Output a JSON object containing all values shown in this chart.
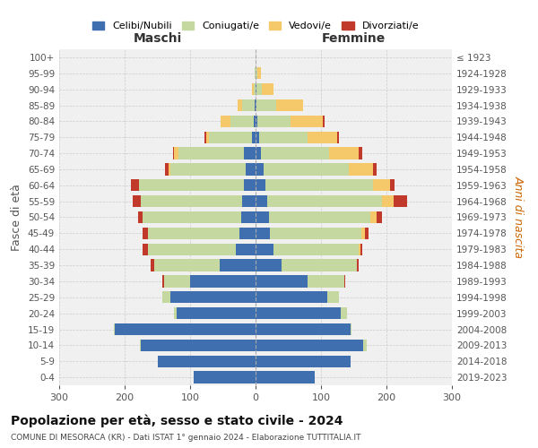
{
  "age_groups": [
    "0-4",
    "5-9",
    "10-14",
    "15-19",
    "20-24",
    "25-29",
    "30-34",
    "35-39",
    "40-44",
    "45-49",
    "50-54",
    "55-59",
    "60-64",
    "65-69",
    "70-74",
    "75-79",
    "80-84",
    "85-89",
    "90-94",
    "95-99",
    "100+"
  ],
  "birth_years": [
    "2019-2023",
    "2014-2018",
    "2009-2013",
    "2004-2008",
    "1999-2003",
    "1994-1998",
    "1989-1993",
    "1984-1988",
    "1979-1983",
    "1974-1978",
    "1969-1973",
    "1964-1968",
    "1959-1963",
    "1954-1958",
    "1949-1953",
    "1944-1948",
    "1939-1943",
    "1934-1938",
    "1929-1933",
    "1924-1928",
    "≤ 1923"
  ],
  "male": {
    "celibi": [
      95,
      150,
      175,
      215,
      120,
      130,
      100,
      55,
      30,
      25,
      22,
      20,
      18,
      15,
      18,
      6,
      3,
      2,
      0,
      0,
      0
    ],
    "coniugati": [
      0,
      0,
      2,
      2,
      5,
      12,
      40,
      100,
      135,
      140,
      150,
      155,
      160,
      115,
      100,
      65,
      35,
      18,
      3,
      1,
      0
    ],
    "vedovi": [
      0,
      0,
      0,
      0,
      0,
      0,
      0,
      0,
      0,
      0,
      0,
      0,
      0,
      3,
      6,
      5,
      15,
      8,
      3,
      1,
      0
    ],
    "divorziati": [
      0,
      0,
      0,
      0,
      0,
      0,
      2,
      5,
      7,
      8,
      8,
      12,
      12,
      5,
      2,
      2,
      0,
      0,
      0,
      0,
      0
    ]
  },
  "female": {
    "nubili": [
      90,
      145,
      165,
      145,
      130,
      110,
      80,
      40,
      28,
      22,
      20,
      18,
      15,
      12,
      8,
      5,
      3,
      2,
      1,
      0,
      0
    ],
    "coniugate": [
      0,
      0,
      5,
      2,
      10,
      18,
      55,
      115,
      130,
      140,
      155,
      175,
      165,
      130,
      105,
      75,
      50,
      30,
      8,
      3,
      0
    ],
    "vedove": [
      0,
      0,
      0,
      0,
      0,
      0,
      0,
      0,
      2,
      5,
      10,
      18,
      25,
      38,
      45,
      45,
      50,
      40,
      18,
      5,
      0
    ],
    "divorziate": [
      0,
      0,
      0,
      0,
      0,
      0,
      2,
      2,
      3,
      5,
      8,
      20,
      8,
      5,
      5,
      2,
      2,
      0,
      0,
      0,
      0
    ]
  },
  "colors": {
    "celibi": "#3f6fae",
    "coniugati": "#c5d8a0",
    "vedovi": "#f5c96a",
    "divorziati": "#c0392b"
  },
  "title": "Popolazione per età, sesso e stato civile - 2024",
  "subtitle": "COMUNE DI MESORACA (KR) - Dati ISTAT 1° gennaio 2024 - Elaborazione TUTTITALIA.IT",
  "xlabel_left": "Maschi",
  "xlabel_right": "Femmine",
  "ylabel_left": "Fasce di età",
  "ylabel_right": "Anni di nascita",
  "xlim": 300,
  "legend_labels": [
    "Celibi/Nubili",
    "Coniugati/e",
    "Vedovi/e",
    "Divorziati/e"
  ],
  "bg_color": "#ffffff",
  "bar_height": 0.75
}
